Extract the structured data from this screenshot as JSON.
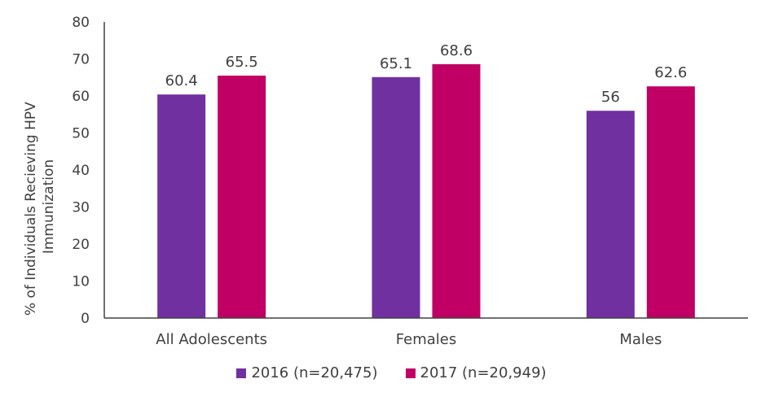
{
  "chart_data": {
    "type": "bar",
    "categories": [
      "All Adolescents",
      "Females",
      "Males"
    ],
    "series": [
      {
        "name": "2016 (n=20,475)",
        "values": [
          60.4,
          65.1,
          56
        ],
        "labels": [
          "60.4",
          "65.1",
          "56"
        ],
        "color": "#7030A0"
      },
      {
        "name": "2017 (n=20,949)",
        "values": [
          65.5,
          68.6,
          62.6
        ],
        "labels": [
          "65.5",
          "68.6",
          "62.6"
        ],
        "color": "#C00064"
      }
    ],
    "ylabel_lines": [
      "% of Individuals Recieving HPV",
      "Immunization"
    ],
    "xlabel": "",
    "ylim": [
      0,
      80
    ],
    "yticks": [
      "0",
      "10",
      "20",
      "30",
      "40",
      "50",
      "60",
      "70",
      "80"
    ],
    "grid": false,
    "legend_position": "bottom"
  }
}
